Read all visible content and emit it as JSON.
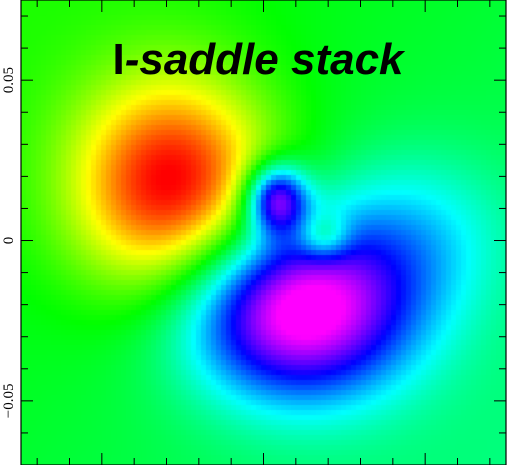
{
  "chart_data": {
    "type": "heatmap",
    "title_bold": "I",
    "title_italic": "-saddle stack",
    "xlabel": "",
    "ylabel": "",
    "xlim": [
      -0.075,
      0.075
    ],
    "ylim": [
      -0.07,
      0.075
    ],
    "y_ticks": [
      {
        "value": 0.05,
        "label": "0.05"
      },
      {
        "value": 0,
        "label": "0"
      },
      {
        "value": -0.05,
        "label": "−0.05"
      }
    ],
    "colormap": [
      "#ff00ff",
      "#0000ff",
      "#00ffff",
      "#00ff00",
      "#ffff00",
      "#ff0000"
    ],
    "value_range": [
      -1,
      1
    ],
    "background_value": 0.12,
    "features": [
      {
        "x": -0.028,
        "y": 0.017,
        "sx": 0.022,
        "sy": 0.024,
        "amplitude": 0.88,
        "shape": "blob"
      },
      {
        "x": 0.004,
        "y": 0.013,
        "sx": 0.0065,
        "sy": 0.0075,
        "amplitude": -0.95,
        "shape": "blob"
      },
      {
        "x": 0.019,
        "y": 0.001,
        "sx": 0.0055,
        "sy": 0.005,
        "amplitude": 0.35,
        "shape": "blob"
      },
      {
        "x": 0.011,
        "y": -0.022,
        "sx": 0.024,
        "sy": 0.019,
        "amplitude": -1.2,
        "shape": "blob"
      },
      {
        "x": 0.046,
        "y": 0.002,
        "sx": 0.02,
        "sy": 0.018,
        "amplitude": -0.3,
        "shape": "blob"
      }
    ],
    "grid": false,
    "frame": true
  }
}
